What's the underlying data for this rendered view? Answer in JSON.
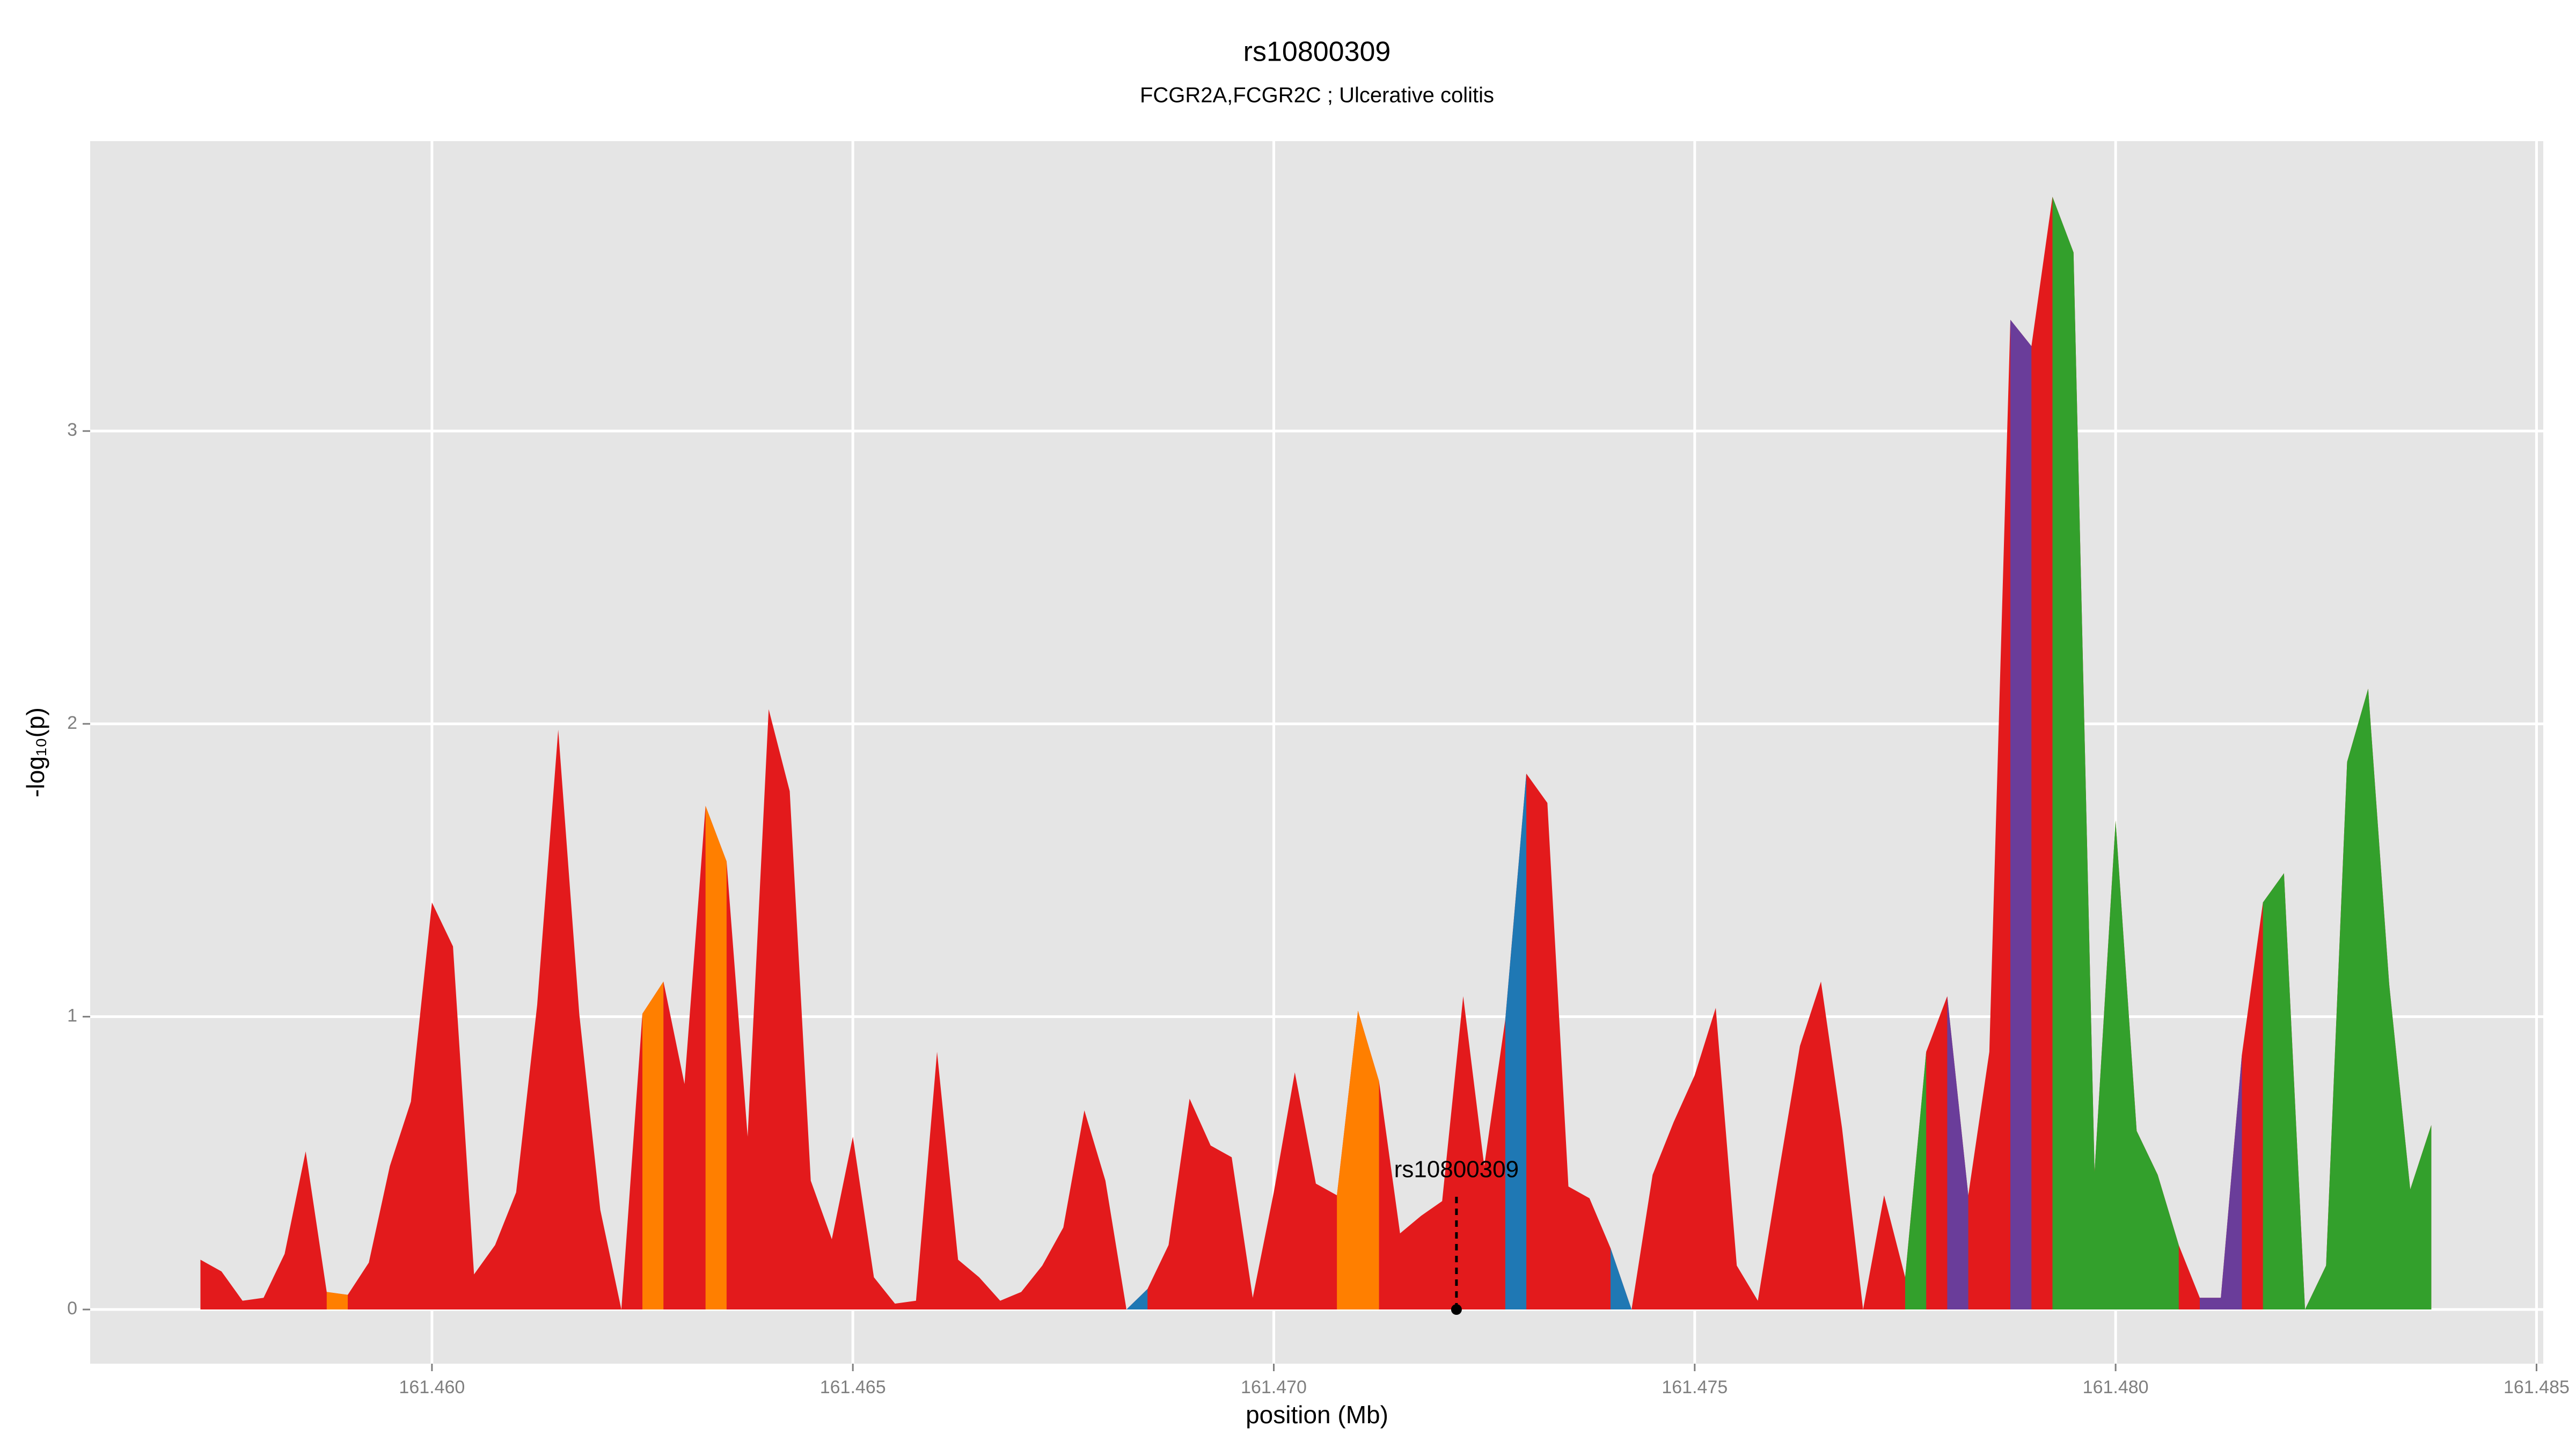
{
  "chart_data": {
    "type": "area",
    "title": "rs10800309",
    "subtitle": "FCGR2A,FCGR2C ; Ulcerative colitis",
    "x_label": "position (Mb)",
    "y_label": "-log₁₀(p)",
    "xlim": [
      161.45594,
      161.48508
    ],
    "ylim": [
      -0.185,
      3.99
    ],
    "xticks": [
      {
        "value": 161.46,
        "label": "161.460"
      },
      {
        "value": 161.465,
        "label": "161.465"
      },
      {
        "value": 161.47,
        "label": "161.470"
      },
      {
        "value": 161.475,
        "label": "161.475"
      },
      {
        "value": 161.48,
        "label": "161.480"
      },
      {
        "value": 161.485,
        "label": "161.485"
      }
    ],
    "yticks": [
      0,
      1,
      2,
      3
    ],
    "grid": true,
    "x": [
      161.45725,
      161.4575,
      161.45775,
      161.458,
      161.45825,
      161.4585,
      161.45875,
      161.459,
      161.45925,
      161.4595,
      161.45975,
      161.46,
      161.46025,
      161.4605,
      161.46075,
      161.461,
      161.46125,
      161.4615,
      161.46175,
      161.462,
      161.46225,
      161.4625,
      161.46275,
      161.463,
      161.46325,
      161.4635,
      161.46375,
      161.464,
      161.46425,
      161.4645,
      161.46475,
      161.465,
      161.46525,
      161.4655,
      161.46575,
      161.466,
      161.46625,
      161.4665,
      161.46675,
      161.467,
      161.46725,
      161.4675,
      161.46775,
      161.468,
      161.46825,
      161.4685,
      161.46875,
      161.469,
      161.46925,
      161.4695,
      161.46975,
      161.47,
      161.47025,
      161.4705,
      161.47075,
      161.471,
      161.47125,
      161.4715,
      161.47175,
      161.472,
      161.47225,
      161.4725,
      161.47275,
      161.473,
      161.47325,
      161.4735,
      161.47375,
      161.474,
      161.47425,
      161.4745,
      161.47475,
      161.475,
      161.47525,
      161.4755,
      161.47575,
      161.476,
      161.47625,
      161.4765,
      161.47675,
      161.477,
      161.47725,
      161.4775,
      161.47775,
      161.478,
      161.47825,
      161.4785,
      161.47875,
      161.479,
      161.47925,
      161.4795,
      161.47975,
      161.48,
      161.48025,
      161.4805,
      161.48075,
      161.481,
      161.48125,
      161.4815,
      161.48175,
      161.482,
      161.48225,
      161.4825,
      161.48275,
      161.483,
      161.48325,
      161.4835,
      161.48375
    ],
    "series": [
      {
        "color": "#e31a1c",
        "values": [
          0.17,
          0.13,
          0.03,
          0.04,
          0.19,
          0.54,
          0.06,
          0.05,
          0.16,
          0.49,
          0.71,
          1.39,
          1.24,
          0.12,
          0.22,
          0.4,
          1.04,
          1.98,
          1.01,
          0.34,
          0,
          1.01,
          1.12,
          0.77,
          1.72,
          1.53,
          0.59,
          2.05,
          1.77,
          0.44,
          0.24,
          0.59,
          0.11,
          0.02,
          0.03,
          0.88,
          0.17,
          0.11,
          0.03,
          0.06,
          0.15,
          0.28,
          0.68,
          0.44,
          0,
          0.07,
          0.22,
          0.72,
          0.56,
          0.52,
          0.04,
          0.4,
          0.81,
          0.43,
          0.39,
          1.02,
          0.78,
          0.26,
          0.32,
          0.37,
          1.07,
          0.49,
          0.99,
          1.83,
          1.73,
          0.42,
          0.38,
          0.21,
          0,
          0.46,
          0.64,
          0.8,
          1.03,
          0.15,
          0.03,
          0.47,
          0.9,
          1.12,
          0.62,
          0,
          0.39,
          0.11,
          0.88,
          1.07,
          0.39,
          0.88,
          3.38,
          3.29,
          3.8,
          3.61,
          0.47,
          1.67,
          0.61,
          0.46,
          0.22,
          0.04,
          0.04,
          0.87,
          1.39,
          1.49,
          0,
          0.15,
          1.87,
          2.12,
          1.11,
          0.41,
          0.63
        ]
      },
      {
        "color": "#ff7f00",
        "values": [
          null,
          null,
          null,
          null,
          null,
          null,
          0.06,
          0.05,
          null,
          null,
          null,
          null,
          null,
          null,
          null,
          null,
          null,
          null,
          null,
          null,
          null,
          1.01,
          1.12,
          null,
          1.72,
          1.53,
          null,
          null,
          null,
          null,
          null,
          null,
          null,
          null,
          null,
          null,
          null,
          null,
          null,
          null,
          null,
          null,
          null,
          null,
          null,
          null,
          null,
          null,
          null,
          null,
          null,
          null,
          null,
          null,
          0.39,
          1.02,
          0.78,
          null,
          null,
          null,
          null,
          null,
          null,
          null,
          null,
          null,
          null,
          null,
          null,
          null,
          null,
          null,
          null,
          null,
          null,
          null,
          null,
          null,
          null,
          null,
          null,
          null,
          null,
          null,
          null,
          null,
          null,
          null,
          null,
          null,
          null,
          null,
          null,
          null,
          null,
          null,
          null,
          null,
          null,
          null,
          null,
          null,
          null,
          null,
          null,
          null,
          null
        ]
      },
      {
        "color": "#1f78b4",
        "values": [
          null,
          null,
          null,
          null,
          null,
          null,
          null,
          null,
          null,
          null,
          null,
          null,
          null,
          null,
          null,
          null,
          null,
          null,
          null,
          null,
          null,
          null,
          null,
          null,
          null,
          null,
          null,
          null,
          null,
          null,
          null,
          null,
          null,
          null,
          null,
          null,
          null,
          null,
          null,
          null,
          null,
          null,
          null,
          null,
          0,
          0.07,
          null,
          null,
          null,
          null,
          null,
          null,
          null,
          null,
          null,
          null,
          null,
          null,
          null,
          null,
          null,
          null,
          0.99,
          1.83,
          null,
          null,
          null,
          0.21,
          0,
          null,
          null,
          null,
          null,
          null,
          null,
          null,
          null,
          null,
          null,
          null,
          null,
          null,
          null,
          null,
          null,
          null,
          null,
          null,
          null,
          null,
          null,
          null,
          null,
          null,
          null,
          null,
          null,
          null,
          null,
          null,
          null,
          null,
          null,
          null,
          null,
          null,
          null
        ]
      },
      {
        "color": "#33a02c",
        "values": [
          null,
          null,
          null,
          null,
          null,
          null,
          null,
          null,
          null,
          null,
          null,
          null,
          null,
          null,
          null,
          null,
          null,
          null,
          null,
          null,
          null,
          null,
          null,
          null,
          null,
          null,
          null,
          null,
          null,
          null,
          null,
          null,
          null,
          null,
          null,
          null,
          null,
          null,
          null,
          null,
          null,
          null,
          null,
          null,
          null,
          null,
          null,
          null,
          null,
          null,
          null,
          null,
          null,
          null,
          null,
          null,
          null,
          null,
          null,
          null,
          null,
          null,
          null,
          null,
          null,
          null,
          null,
          null,
          null,
          null,
          null,
          null,
          null,
          null,
          null,
          null,
          null,
          null,
          null,
          null,
          null,
          0.11,
          0.88,
          null,
          null,
          null,
          null,
          null,
          3.8,
          3.61,
          0.47,
          1.67,
          0.61,
          0.46,
          0.22,
          null,
          null,
          null,
          1.39,
          1.49,
          0,
          0.15,
          1.87,
          2.12,
          1.11,
          0.41,
          0.63
        ]
      },
      {
        "color": "#6a3d9a",
        "values": [
          null,
          null,
          null,
          null,
          null,
          null,
          null,
          null,
          null,
          null,
          null,
          null,
          null,
          null,
          null,
          null,
          null,
          null,
          null,
          null,
          null,
          null,
          null,
          null,
          null,
          null,
          null,
          null,
          null,
          null,
          null,
          null,
          null,
          null,
          null,
          null,
          null,
          null,
          null,
          null,
          null,
          null,
          null,
          null,
          null,
          null,
          null,
          null,
          null,
          null,
          null,
          null,
          null,
          null,
          null,
          null,
          null,
          null,
          null,
          null,
          null,
          null,
          null,
          null,
          null,
          null,
          null,
          null,
          null,
          null,
          null,
          null,
          null,
          null,
          null,
          null,
          null,
          null,
          null,
          null,
          null,
          null,
          null,
          1.07,
          0.39,
          null,
          3.38,
          3.29,
          null,
          null,
          null,
          null,
          null,
          null,
          null,
          0.04,
          0.04,
          0.87,
          null,
          null,
          null,
          null,
          null,
          null,
          null,
          null,
          null
        ]
      }
    ],
    "annotation": {
      "text": "rs10800309",
      "x": 161.47217,
      "y": 0
    }
  }
}
